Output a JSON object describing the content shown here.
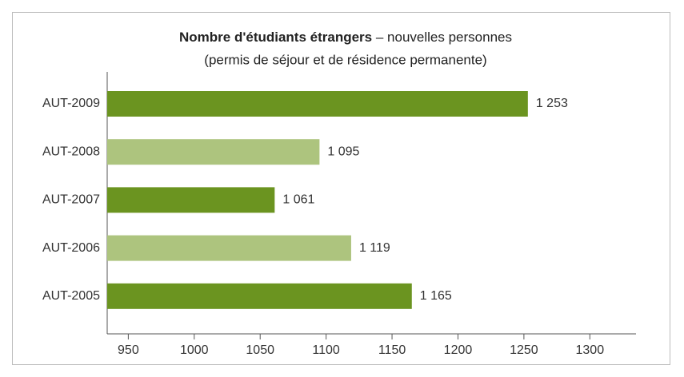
{
  "chart_data": {
    "type": "bar",
    "orientation": "horizontal",
    "title": [
      "Nombre d'étudiants étrangers",
      "– nouvelles personnes"
    ],
    "subtitle": "(permis de séjour et de résidence permanente)",
    "categories": [
      "AUT-2009",
      "AUT-2008",
      "AUT-2007",
      "AUT-2006",
      "AUT-2005"
    ],
    "values": [
      1253,
      1095,
      1061,
      1119,
      1165
    ],
    "value_labels": [
      "1 253",
      "1 095",
      "1 061",
      "1 119",
      "1 165"
    ],
    "colors": [
      "#6b9420",
      "#adc47e",
      "#6b9420",
      "#adc47e",
      "#6b9420"
    ],
    "xlim": [
      934,
      1335
    ],
    "xticks": [
      950,
      1000,
      1050,
      1100,
      1150,
      1200,
      1250,
      1300
    ]
  }
}
